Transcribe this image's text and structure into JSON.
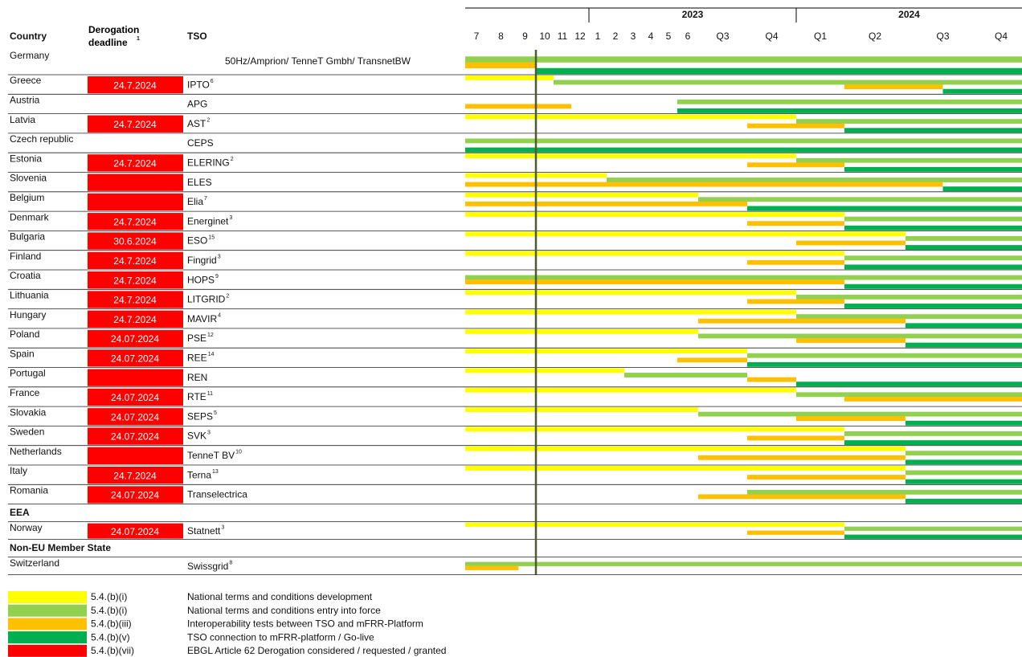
{
  "chart_data": {
    "type": "gantt",
    "header": {
      "country": "Country",
      "deadline": "Derogation deadline",
      "deadline_note": "1",
      "tso": "TSO"
    },
    "years": [
      {
        "label": "2023",
        "from": 6,
        "to": 14
      },
      {
        "label": "2024",
        "from": 14,
        "to": 18
      }
    ],
    "periods": [
      "7",
      "8",
      "9",
      "10",
      "11",
      "12",
      "1",
      "2",
      "3",
      "4",
      "5",
      "6",
      "Q3",
      "Q4",
      "Q1",
      "Q2",
      "Q3",
      "Q4"
    ],
    "legend": [
      {
        "code": "5.4.(b)(i)",
        "text": "National terms and conditions development",
        "color": "#ffff00"
      },
      {
        "code": "5.4.(b)(i)",
        "text": "National terms and conditions entry into force",
        "color": "#92d050"
      },
      {
        "code": "5.4.(b)(iii)",
        "text": "Interoperability tests between TSO and mFRR-Platform",
        "color": "#ffc000"
      },
      {
        "code": "5.4.(b)(v)",
        "text": "TSO connection to mFRR-platform / Go-live",
        "color": "#00b050"
      },
      {
        "code": "5.4.(b)(vii)",
        "text": "EBGL Article 62 Derogation considered / requested / granted",
        "color": "#ff0000"
      }
    ],
    "rows": [
      {
        "country": "Germany",
        "tso": "50Hz/Amprion/ TenneT Gmbh/ TransnetBW",
        "bars": [
          {
            "phase": 1,
            "start": 0,
            "end": 18
          },
          {
            "phase": 2,
            "start": 0,
            "end": 3
          },
          {
            "phase": 3,
            "start": 3,
            "end": 18
          }
        ]
      },
      {
        "country": "Greece",
        "derogation": true,
        "deadline": "24.7.2024",
        "tso": "IPTO",
        "note": "6",
        "bars": [
          {
            "phase": 0,
            "start": 0,
            "end": 4
          },
          {
            "phase": 1,
            "start": 4,
            "end": 18
          },
          {
            "phase": 2,
            "start": 15,
            "end": 16.5
          },
          {
            "phase": 3,
            "start": 16.5,
            "end": 18
          }
        ]
      },
      {
        "country": "Austria",
        "tso": "APG",
        "bars": [
          {
            "phase": 1,
            "start": 11,
            "end": 18
          },
          {
            "phase": 2,
            "start": 0,
            "end": 5
          },
          {
            "phase": 3,
            "start": 11,
            "end": 18
          }
        ]
      },
      {
        "country": "Latvia",
        "derogation": true,
        "deadline": "24.7.2024",
        "tso": "AST",
        "note": "2",
        "bars": [
          {
            "phase": 0,
            "start": 0,
            "end": 14
          },
          {
            "phase": 1,
            "start": 14,
            "end": 18
          },
          {
            "phase": 2,
            "start": 13,
            "end": 15
          },
          {
            "phase": 3,
            "start": 15,
            "end": 18
          }
        ]
      },
      {
        "country": "Czech republic",
        "tso": "CEPS",
        "bars": [
          {
            "phase": 1,
            "start": 0,
            "end": 18
          },
          {
            "phase": 3,
            "start": 0,
            "end": 18
          }
        ]
      },
      {
        "country": "Estonia",
        "derogation": true,
        "deadline": "24.7.2024",
        "tso": "ELERING",
        "note": "2",
        "bars": [
          {
            "phase": 0,
            "start": 0,
            "end": 14
          },
          {
            "phase": 1,
            "start": 14,
            "end": 18
          },
          {
            "phase": 2,
            "start": 13,
            "end": 15
          },
          {
            "phase": 3,
            "start": 15,
            "end": 18
          }
        ]
      },
      {
        "country": "Slovenia",
        "derogation": true,
        "tso": "ELES",
        "bars": [
          {
            "phase": 0,
            "start": 0,
            "end": 7
          },
          {
            "phase": 1,
            "start": 7,
            "end": 18
          },
          {
            "phase": 2,
            "start": 0,
            "end": 16.5
          },
          {
            "phase": 3,
            "start": 16.5,
            "end": 18
          }
        ]
      },
      {
        "country": "Belgium",
        "derogation": true,
        "tso": "Elia",
        "note": "7",
        "bars": [
          {
            "phase": 0,
            "start": 0,
            "end": 12
          },
          {
            "phase": 1,
            "start": 12,
            "end": 18
          },
          {
            "phase": 2,
            "start": 0,
            "end": 13
          },
          {
            "phase": 3,
            "start": 13,
            "end": 18
          }
        ]
      },
      {
        "country": "Denmark",
        "derogation": true,
        "deadline": "24.7.2024",
        "tso": "Energinet",
        "note": "3",
        "bars": [
          {
            "phase": 0,
            "start": 0,
            "end": 15
          },
          {
            "phase": 1,
            "start": 15,
            "end": 18
          },
          {
            "phase": 2,
            "start": 13,
            "end": 15
          },
          {
            "phase": 3,
            "start": 15,
            "end": 18
          }
        ]
      },
      {
        "country": "Bulgaria",
        "derogation": true,
        "deadline": "30.6.2024",
        "tso": "ESO",
        "note": "15",
        "bars": [
          {
            "phase": 0,
            "start": 0,
            "end": 16
          },
          {
            "phase": 1,
            "start": 16,
            "end": 18
          },
          {
            "phase": 2,
            "start": 14,
            "end": 16
          },
          {
            "phase": 3,
            "start": 16,
            "end": 18
          }
        ]
      },
      {
        "country": "Finland",
        "derogation": true,
        "deadline": "24.7.2024",
        "tso": "Fingrid",
        "note": "3",
        "bars": [
          {
            "phase": 0,
            "start": 0,
            "end": 15
          },
          {
            "phase": 1,
            "start": 15,
            "end": 18
          },
          {
            "phase": 2,
            "start": 13,
            "end": 15
          },
          {
            "phase": 3,
            "start": 15,
            "end": 18
          }
        ]
      },
      {
        "country": "Croatia",
        "derogation": true,
        "deadline": "24.7.2024",
        "tso": "HOPS",
        "note": "9",
        "bars": [
          {
            "phase": 1,
            "start": 0,
            "end": 18
          },
          {
            "phase": 2,
            "start": 0,
            "end": 15
          },
          {
            "phase": 3,
            "start": 15,
            "end": 18
          }
        ]
      },
      {
        "country": "Lithuania",
        "derogation": true,
        "deadline": "24.7.2024",
        "tso": "LITGRID",
        "note": "2",
        "bars": [
          {
            "phase": 0,
            "start": 0,
            "end": 14
          },
          {
            "phase": 1,
            "start": 14,
            "end": 18
          },
          {
            "phase": 2,
            "start": 13,
            "end": 15
          },
          {
            "phase": 3,
            "start": 15,
            "end": 18
          }
        ]
      },
      {
        "country": "Hungary",
        "derogation": true,
        "deadline": "24.7.2024",
        "tso": "MAVIR",
        "note": "4",
        "bars": [
          {
            "phase": 0,
            "start": 0,
            "end": 14
          },
          {
            "phase": 1,
            "start": 14,
            "end": 18
          },
          {
            "phase": 2,
            "start": 12,
            "end": 16
          },
          {
            "phase": 3,
            "start": 16,
            "end": 18
          }
        ]
      },
      {
        "country": "Poland",
        "derogation": true,
        "deadline": "24.07.2024",
        "tso": "PSE",
        "note": "12",
        "bars": [
          {
            "phase": 0,
            "start": 0,
            "end": 12
          },
          {
            "phase": 1,
            "start": 12,
            "end": 18
          },
          {
            "phase": 2,
            "start": 14,
            "end": 16
          },
          {
            "phase": 3,
            "start": 16,
            "end": 18
          }
        ]
      },
      {
        "country": "Spain",
        "derogation": true,
        "deadline": "24.07.2024",
        "tso": "REE",
        "note": "14",
        "bars": [
          {
            "phase": 0,
            "start": 0,
            "end": 13
          },
          {
            "phase": 1,
            "start": 13,
            "end": 18
          },
          {
            "phase": 2,
            "start": 11,
            "end": 13
          },
          {
            "phase": 3,
            "start": 13,
            "end": 18
          }
        ]
      },
      {
        "country": "Portugal",
        "derogation": true,
        "tso": "REN",
        "bars": [
          {
            "phase": 0,
            "start": 0,
            "end": 8
          },
          {
            "phase": 1,
            "start": 8,
            "end": 13
          },
          {
            "phase": 2,
            "start": 13,
            "end": 14
          },
          {
            "phase": 3,
            "start": 14,
            "end": 18
          }
        ]
      },
      {
        "country": "France",
        "derogation": true,
        "deadline": "24.07.2024",
        "tso": "RTE",
        "note": "11",
        "bars": [
          {
            "phase": 0,
            "start": 0,
            "end": 14
          },
          {
            "phase": 1,
            "start": 14,
            "end": 18
          },
          {
            "phase": 2,
            "start": 15,
            "end": 18
          }
        ]
      },
      {
        "country": "Slovakia",
        "derogation": true,
        "deadline": "24.07.2024",
        "tso": "SEPS",
        "note": "5",
        "bars": [
          {
            "phase": 0,
            "start": 0,
            "end": 12
          },
          {
            "phase": 1,
            "start": 12,
            "end": 18
          },
          {
            "phase": 2,
            "start": 14,
            "end": 16
          },
          {
            "phase": 3,
            "start": 16,
            "end": 18
          }
        ]
      },
      {
        "country": "Sweden",
        "derogation": true,
        "deadline": "24.07.2024",
        "tso": "SVK",
        "note": "3",
        "bars": [
          {
            "phase": 0,
            "start": 0,
            "end": 15
          },
          {
            "phase": 1,
            "start": 15,
            "end": 18
          },
          {
            "phase": 2,
            "start": 13,
            "end": 15
          },
          {
            "phase": 3,
            "start": 15,
            "end": 18
          }
        ]
      },
      {
        "country": "Netherlands",
        "derogation": true,
        "tso": "TenneT BV",
        "note": "10",
        "bars": [
          {
            "phase": 0,
            "start": 0,
            "end": 16
          },
          {
            "phase": 1,
            "start": 16,
            "end": 18
          },
          {
            "phase": 2,
            "start": 12,
            "end": 16
          },
          {
            "phase": 3,
            "start": 16,
            "end": 18
          }
        ]
      },
      {
        "country": "Italy",
        "derogation": true,
        "deadline": "24.7.2024",
        "tso": "Terna",
        "note": "13",
        "bars": [
          {
            "phase": 0,
            "start": 0,
            "end": 16
          },
          {
            "phase": 1,
            "start": 16,
            "end": 18
          },
          {
            "phase": 2,
            "start": 13,
            "end": 16
          },
          {
            "phase": 3,
            "start": 16,
            "end": 18
          }
        ]
      },
      {
        "country": "Romania",
        "derogation": true,
        "deadline": "24.07.2024",
        "tso": "Transelectrica",
        "bars": [
          {
            "phase": 1,
            "start": 13,
            "end": 18
          },
          {
            "phase": 2,
            "start": 12,
            "end": 16
          },
          {
            "phase": 3,
            "start": 16,
            "end": 18
          }
        ]
      },
      {
        "section": "EEA"
      },
      {
        "country": "Norway",
        "derogation": true,
        "deadline": "24.07.2024",
        "tso": "Statnett",
        "note": "3",
        "bars": [
          {
            "phase": 0,
            "start": 0,
            "end": 15
          },
          {
            "phase": 1,
            "start": 15,
            "end": 18
          },
          {
            "phase": 2,
            "start": 13,
            "end": 15
          },
          {
            "phase": 3,
            "start": 15,
            "end": 18
          }
        ]
      },
      {
        "section": "Non-EU Member State"
      },
      {
        "country": "Switzerland",
        "tso": "Swissgrid",
        "note": "8",
        "bars": [
          {
            "phase": 1,
            "start": 0,
            "end": 18
          },
          {
            "phase": 2,
            "start": 0,
            "end": 2.2
          }
        ]
      }
    ]
  }
}
